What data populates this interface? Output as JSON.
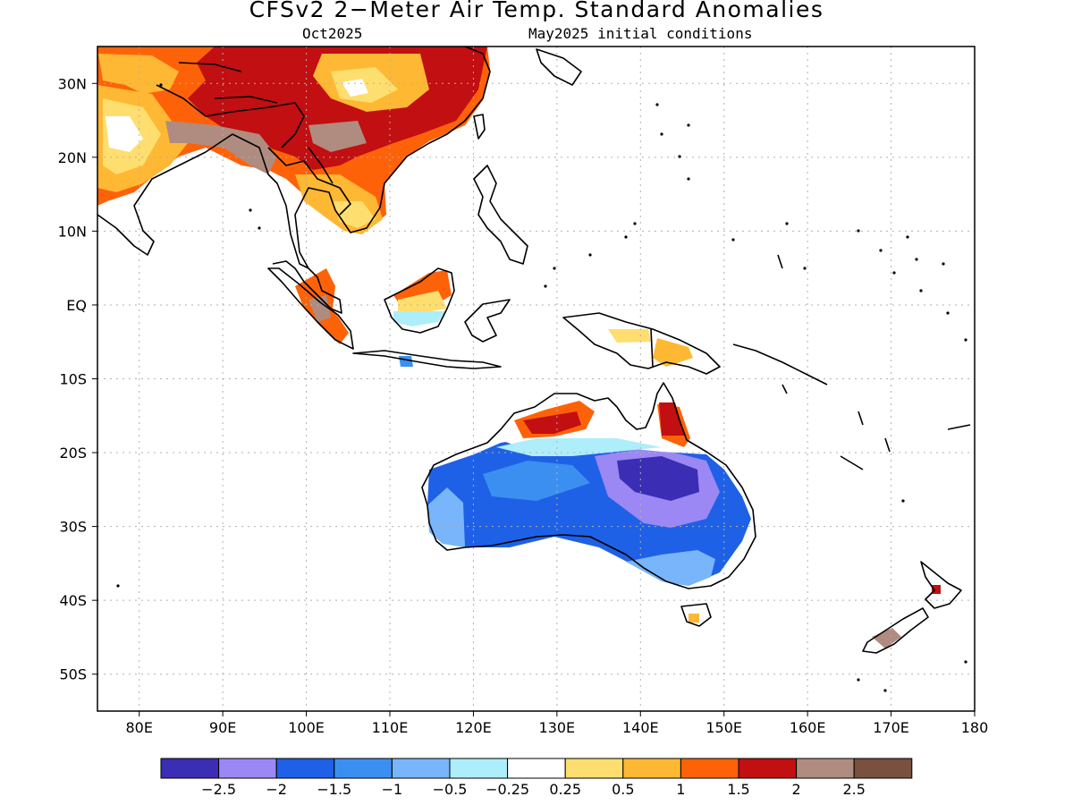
{
  "title": "CFSv2 2−Meter Air Temp. Standard Anomalies",
  "subtitle_left": "Oct2025",
  "subtitle_right": "May2025 initial conditions",
  "map": {
    "lon_range": [
      75,
      180
    ],
    "lat_range": [
      -55,
      35
    ],
    "lon_ticks": [
      "80E",
      "90E",
      "100E",
      "110E",
      "120E",
      "130E",
      "140E",
      "150E",
      "160E",
      "170E",
      "180"
    ],
    "lat_ticks": [
      "30N",
      "20N",
      "10N",
      "EQ",
      "10S",
      "20S",
      "30S",
      "40S",
      "50S"
    ],
    "grid": true
  },
  "legend": {
    "colors": [
      "#3b2eb4",
      "#9b88f5",
      "#1e61e6",
      "#3b8ff0",
      "#78b5fa",
      "#aeeefa",
      "#ffffff",
      "#fede6f",
      "#feb834",
      "#fe6209",
      "#c20f11",
      "#b08b80",
      "#7a5040"
    ],
    "labels": [
      "−2.5",
      "−2",
      "−1.5",
      "−1",
      "−0.5",
      "−0.25",
      "0.25",
      "0.5",
      "1",
      "1.5",
      "2",
      "2.5"
    ]
  }
}
